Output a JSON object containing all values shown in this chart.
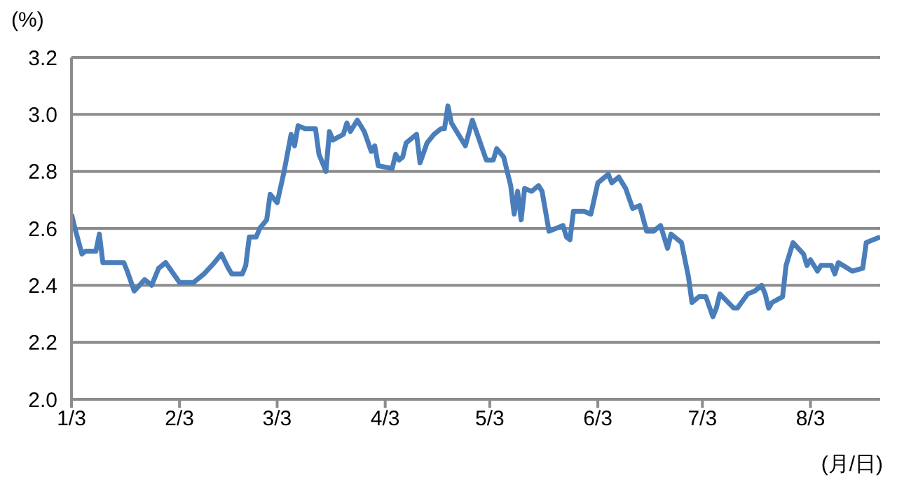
{
  "chart_data": {
    "type": "line",
    "ylabel": "(%)",
    "xlabel": "(月/日)",
    "x": [
      "--01-03",
      "--01-04",
      "--01-06",
      "--01-07",
      "--01-10",
      "--01-11",
      "--01-12",
      "--01-18",
      "--01-19",
      "--01-21",
      "--01-24",
      "--01-26",
      "--01-28",
      "--01-30",
      "--02-03",
      "--02-07",
      "--02-10",
      "--02-13",
      "--02-15",
      "--02-17",
      "--02-18",
      "--02-21",
      "--02-22",
      "--02-23",
      "--02-25",
      "--02-26",
      "--02-28",
      "--03-01",
      "--03-03",
      "--03-05",
      "--03-07",
      "--03-08",
      "--03-09",
      "--03-11",
      "--03-14",
      "--03-15",
      "--03-17",
      "--03-18",
      "--03-19",
      "--03-22",
      "--03-23",
      "--03-24",
      "--03-26",
      "--03-28",
      "--03-30",
      "--03-31",
      "--04-01",
      "--04-05",
      "--04-06",
      "--04-07",
      "--04-08",
      "--04-09",
      "--04-12",
      "--04-13",
      "--04-15",
      "--04-17",
      "--04-19",
      "--04-20",
      "--04-21",
      "--04-22",
      "--04-26",
      "--04-28",
      "--05-02",
      "--05-04",
      "--05-05",
      "--05-07",
      "--05-09",
      "--05-10",
      "--05-11",
      "--05-12",
      "--05-13",
      "--05-15",
      "--05-17",
      "--05-18",
      "--05-20",
      "--05-22",
      "--05-24",
      "--05-25",
      "--05-26",
      "--05-27",
      "--05-30",
      "--06-01",
      "--06-03",
      "--06-06",
      "--06-07",
      "--06-09",
      "--06-11",
      "--06-13",
      "--06-15",
      "--06-17",
      "--06-19",
      "--06-21",
      "--06-23",
      "--06-24",
      "--06-27",
      "--06-29",
      "--06-30",
      "--07-02",
      "--07-04",
      "--07-06",
      "--07-07",
      "--07-08",
      "--07-12",
      "--07-13",
      "--07-16",
      "--07-18",
      "--07-20",
      "--07-21",
      "--07-22",
      "--07-23",
      "--07-26",
      "--07-27",
      "--07-29",
      "--08-01",
      "--08-02",
      "--08-03",
      "--08-05",
      "--08-06",
      "--08-09",
      "--08-10",
      "--08-11",
      "--08-15",
      "--08-18",
      "--08-19",
      "--08-23"
    ],
    "series": [
      {
        "color": "#4a7ebb",
        "values": [
          2.65,
          2.6,
          2.51,
          2.52,
          2.52,
          2.58,
          2.48,
          2.48,
          2.45,
          2.38,
          2.42,
          2.4,
          2.46,
          2.48,
          2.41,
          2.41,
          2.44,
          2.48,
          2.51,
          2.46,
          2.44,
          2.44,
          2.47,
          2.57,
          2.57,
          2.6,
          2.63,
          2.72,
          2.69,
          2.8,
          2.93,
          2.89,
          2.96,
          2.95,
          2.95,
          2.86,
          2.8,
          2.94,
          2.91,
          2.93,
          2.97,
          2.94,
          2.98,
          2.94,
          2.87,
          2.89,
          2.82,
          2.81,
          2.86,
          2.84,
          2.85,
          2.9,
          2.93,
          2.83,
          2.9,
          2.93,
          2.95,
          2.95,
          3.03,
          2.97,
          2.89,
          2.98,
          2.84,
          2.84,
          2.88,
          2.85,
          2.75,
          2.65,
          2.73,
          2.63,
          2.74,
          2.73,
          2.75,
          2.73,
          2.59,
          2.6,
          2.61,
          2.57,
          2.56,
          2.66,
          2.66,
          2.65,
          2.76,
          2.79,
          2.76,
          2.78,
          2.74,
          2.67,
          2.68,
          2.59,
          2.59,
          2.61,
          2.53,
          2.58,
          2.55,
          2.43,
          2.34,
          2.36,
          2.36,
          2.29,
          2.32,
          2.37,
          2.32,
          2.32,
          2.37,
          2.38,
          2.4,
          2.37,
          2.32,
          2.34,
          2.36,
          2.47,
          2.55,
          2.51,
          2.47,
          2.49,
          2.45,
          2.47,
          2.47,
          2.44,
          2.48,
          2.45,
          2.46,
          2.55,
          2.57
        ]
      }
    ],
    "xlim": [
      "--01-03",
      "--08-23"
    ],
    "xticks": [
      {
        "value": "--01-03",
        "label": "1/3"
      },
      {
        "value": "--02-03",
        "label": "2/3"
      },
      {
        "value": "--03-03",
        "label": "3/3"
      },
      {
        "value": "--04-03",
        "label": "4/3"
      },
      {
        "value": "--05-03",
        "label": "5/3"
      },
      {
        "value": "--06-03",
        "label": "6/3"
      },
      {
        "value": "--07-03",
        "label": "7/3"
      },
      {
        "value": "--08-03",
        "label": "8/3"
      }
    ],
    "ylim": [
      2,
      3.2
    ],
    "yticks": [
      {
        "value": 2,
        "label": "2.0"
      },
      2.2,
      2.4,
      2.6,
      2.8,
      {
        "value": 3,
        "label": "3.0"
      },
      3.2
    ],
    "grid": "y",
    "legend": false,
    "marker": "none",
    "line_style": "solid"
  }
}
